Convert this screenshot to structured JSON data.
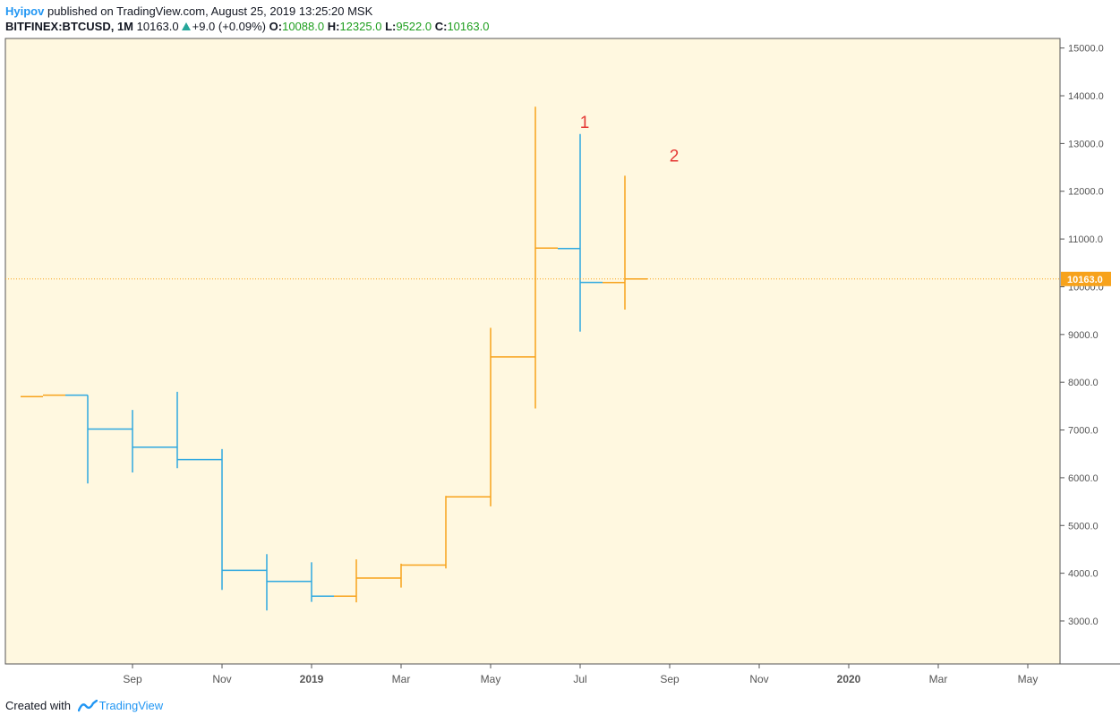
{
  "header": {
    "author": "Hyipov",
    "published_text": "published on TradingView.com, August 25, 2019 13:25:20 MSK",
    "symbol": "BITFINEX:BTCUSD, 1M",
    "last": "10163.0",
    "change": "+9.0 (+0.09%)",
    "o_label": "O:",
    "o_value": "10088.0",
    "h_label": "H:",
    "h_value": "12325.0",
    "l_label": "L:",
    "l_value": "9522.0",
    "c_label": "C:",
    "c_value": "10163.0"
  },
  "footer": {
    "created_with": "Created with",
    "brand": "TradingView"
  },
  "colors": {
    "up": "#f7a21b",
    "down": "#2ea8e0",
    "background": "#fff8e0",
    "price_line": "#f7a21b",
    "annotation": "#e53935"
  },
  "chart_data": {
    "type": "ohlc",
    "symbol": "BITFINEX:BTCUSD",
    "interval": "1M",
    "ylim": [
      2100,
      15200
    ],
    "y_ticks": [
      3000,
      4000,
      5000,
      6000,
      7000,
      8000,
      9000,
      10000,
      11000,
      12000,
      13000,
      14000,
      15000
    ],
    "y_tick_labels": [
      "3000.0",
      "4000.0",
      "5000.0",
      "6000.0",
      "7000.0",
      "8000.0",
      "9000.0",
      "10000.0",
      "11000.0",
      "12000.0",
      "13000.0",
      "14000.0",
      "15000.0"
    ],
    "x_ticks": [
      {
        "label": "Sep",
        "t": 2,
        "bold": false
      },
      {
        "label": "Nov",
        "t": 4,
        "bold": false
      },
      {
        "label": "2019",
        "t": 6,
        "bold": true
      },
      {
        "label": "Mar",
        "t": 8,
        "bold": false
      },
      {
        "label": "May",
        "t": 10,
        "bold": false
      },
      {
        "label": "Jul",
        "t": 12,
        "bold": false
      },
      {
        "label": "Sep",
        "t": 14,
        "bold": false
      },
      {
        "label": "Nov",
        "t": 16,
        "bold": false
      },
      {
        "label": "2020",
        "t": 18,
        "bold": true
      },
      {
        "label": "Mar",
        "t": 20,
        "bold": false
      },
      {
        "label": "May",
        "t": 22,
        "bold": false
      }
    ],
    "bars": [
      {
        "t": 0,
        "open": 7700,
        "high": 7700,
        "low": 7700,
        "close": 7730
      },
      {
        "t": 1,
        "open": 7730,
        "high": 7730,
        "low": 5880,
        "close": 7020
      },
      {
        "t": 2,
        "open": 7020,
        "high": 7420,
        "low": 6110,
        "close": 6640
      },
      {
        "t": 3,
        "open": 6640,
        "high": 7800,
        "low": 6200,
        "close": 6380
      },
      {
        "t": 4,
        "open": 6380,
        "high": 6600,
        "low": 3650,
        "close": 4060
      },
      {
        "t": 5,
        "open": 4060,
        "high": 4400,
        "low": 3220,
        "close": 3830
      },
      {
        "t": 6,
        "open": 3830,
        "high": 4230,
        "low": 3400,
        "close": 3520
      },
      {
        "t": 7,
        "open": 3520,
        "high": 4290,
        "low": 3390,
        "close": 3900
      },
      {
        "t": 8,
        "open": 3900,
        "high": 4200,
        "low": 3700,
        "close": 4170
      },
      {
        "t": 9,
        "open": 4170,
        "high": 5620,
        "low": 4100,
        "close": 5600
      },
      {
        "t": 10,
        "open": 5600,
        "high": 9140,
        "low": 5400,
        "close": 8530
      },
      {
        "t": 11,
        "open": 8530,
        "high": 13770,
        "low": 7450,
        "close": 10810
      },
      {
        "t": 12,
        "open": 10800,
        "high": 13200,
        "low": 9060,
        "close": 10090
      },
      {
        "t": 13,
        "open": 10088,
        "high": 12325,
        "low": 9522,
        "close": 10163
      }
    ],
    "current_price": 10163.0,
    "current_price_label": "10163.0",
    "annotations": [
      {
        "text": "1",
        "t": 12,
        "y": 13330
      },
      {
        "text": "2",
        "t": 14,
        "y": 12620
      }
    ]
  }
}
